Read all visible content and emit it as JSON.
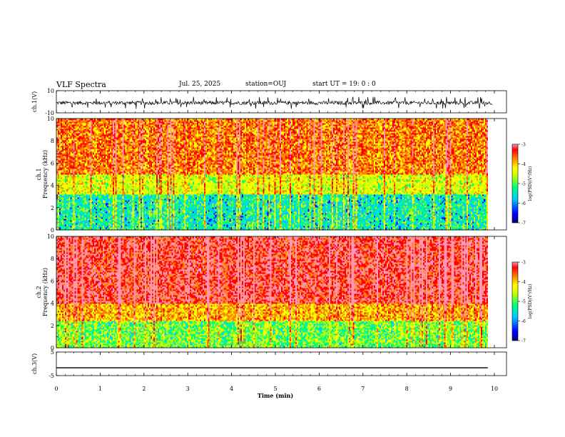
{
  "header": {
    "title": "VLF Spectra",
    "date": "Jul. 25, 2025",
    "station": "station=OUJ",
    "start": "start UT =   19: 0  : 0"
  },
  "colors": {
    "spectrogram_scale": [
      "#00007a",
      "#0000ff",
      "#00c8ff",
      "#00ff80",
      "#c8ff00",
      "#ffff00",
      "#ff8000",
      "#ff0000",
      "#ff96b4"
    ]
  },
  "chart_data": [
    {
      "type": "line",
      "panel": "waveform-ch1",
      "ylabel": "ch.1(V)",
      "ylim": [
        -10,
        10
      ],
      "yticks": [
        "10",
        "-10"
      ],
      "xlim": [
        0,
        10
      ],
      "series": [
        {
          "values": "noisy waveform near -1 V, amplitude about ±2 V with occasional spikes to ±4 V"
        }
      ]
    },
    {
      "type": "heatmap",
      "panel": "spectrogram-ch1",
      "ylabel": "ch.1 Frequency (kHz)",
      "ylim": [
        0,
        10
      ],
      "yticks": [
        "0",
        "2",
        "4",
        "6",
        "8",
        "10"
      ],
      "xlim": [
        0,
        9.85
      ],
      "colorbar": {
        "label": "log(PSD)(V²/Hz)",
        "range": [
          -7,
          -3
        ],
        "ticks": [
          "-3",
          "-4",
          "-5",
          "-6",
          "-7"
        ]
      },
      "bands": [
        {
          "fmin": 0,
          "fmax": 3.2,
          "level": -5.6
        },
        {
          "fmin": 3.2,
          "fmax": 5,
          "level": -4.8
        },
        {
          "fmin": 5,
          "fmax": 10,
          "level": -4.1
        }
      ]
    },
    {
      "type": "heatmap",
      "panel": "spectrogram-ch2",
      "ylabel": "ch.2 Frequency (kHz)",
      "ylim": [
        0,
        10
      ],
      "yticks": [
        "0",
        "2",
        "4",
        "6",
        "8",
        "10"
      ],
      "xlim": [
        0,
        9.85
      ],
      "colorbar": {
        "label": "log(PSD)(V²/Hz)",
        "range": [
          -7,
          -3
        ],
        "ticks": [
          "-3",
          "-4",
          "-5",
          "-6",
          "-7"
        ]
      },
      "bands": [
        {
          "fmin": 0,
          "fmax": 2.5,
          "level": -5.2
        },
        {
          "fmin": 2.5,
          "fmax": 4,
          "level": -4.3
        },
        {
          "fmin": 4,
          "fmax": 10,
          "level": -3.6
        }
      ]
    },
    {
      "type": "line",
      "panel": "waveform-ch3",
      "ylabel": "ch.3(V)",
      "ylim": [
        -5,
        5
      ],
      "yticks": [
        "5",
        "-5"
      ],
      "xlim": [
        0,
        10
      ],
      "xticks": [
        "0",
        "1",
        "2",
        "3",
        "4",
        "5",
        "6",
        "7",
        "8",
        "9",
        "10"
      ],
      "xlabel": "Time (min)",
      "series": [
        {
          "values": [
            [
              0,
              -1.7
            ],
            [
              9.85,
              -1.7
            ]
          ]
        }
      ]
    }
  ]
}
